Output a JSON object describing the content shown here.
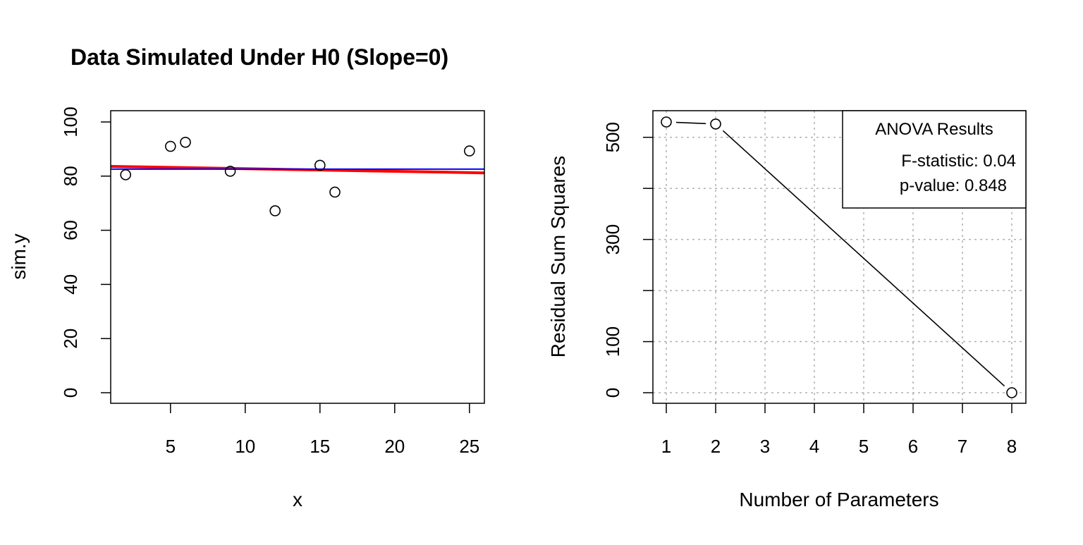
{
  "chart_data": [
    {
      "type": "scatter",
      "title": "Data Simulated Under H0 (Slope=0)",
      "xlabel": "x",
      "ylabel": "sim.y",
      "xlim": [
        1,
        26
      ],
      "ylim": [
        0,
        100
      ],
      "xticks": [
        5,
        10,
        15,
        20,
        25
      ],
      "yticks": [
        0,
        20,
        40,
        60,
        80,
        100
      ],
      "grid": false,
      "points": [
        {
          "x": 2,
          "y": 80.5
        },
        {
          "x": 5,
          "y": 91.0
        },
        {
          "x": 6,
          "y": 92.5
        },
        {
          "x": 9,
          "y": 81.8
        },
        {
          "x": 12,
          "y": 67.2
        },
        {
          "x": 15,
          "y": 84.0
        },
        {
          "x": 16,
          "y": 74.1
        },
        {
          "x": 25,
          "y": 89.3
        }
      ],
      "lines": [
        {
          "color": "#ff0000",
          "x": [
            1,
            26
          ],
          "y": [
            83.6,
            81.2
          ]
        },
        {
          "color": "#0000ff",
          "x": [
            1,
            26
          ],
          "y": [
            82.6,
            82.6
          ]
        }
      ]
    },
    {
      "type": "line",
      "title": "",
      "xlabel": "Number of Parameters",
      "ylabel": "Residual Sum Squares",
      "xlim": [
        1,
        8
      ],
      "ylim": [
        0,
        530
      ],
      "xticks": [
        1,
        2,
        3,
        4,
        5,
        6,
        7,
        8
      ],
      "yticks": [
        0,
        100,
        200,
        300,
        400,
        500
      ],
      "ytick_labels": [
        "0",
        "100",
        "",
        "300",
        "",
        "500"
      ],
      "grid": true,
      "x": [
        1,
        2,
        8
      ],
      "y": [
        530,
        526,
        0
      ],
      "legend": {
        "position": "top-right",
        "title": "ANOVA Results",
        "lines": [
          "F-statistic: 0.04",
          "p-value: 0.848"
        ]
      }
    }
  ]
}
